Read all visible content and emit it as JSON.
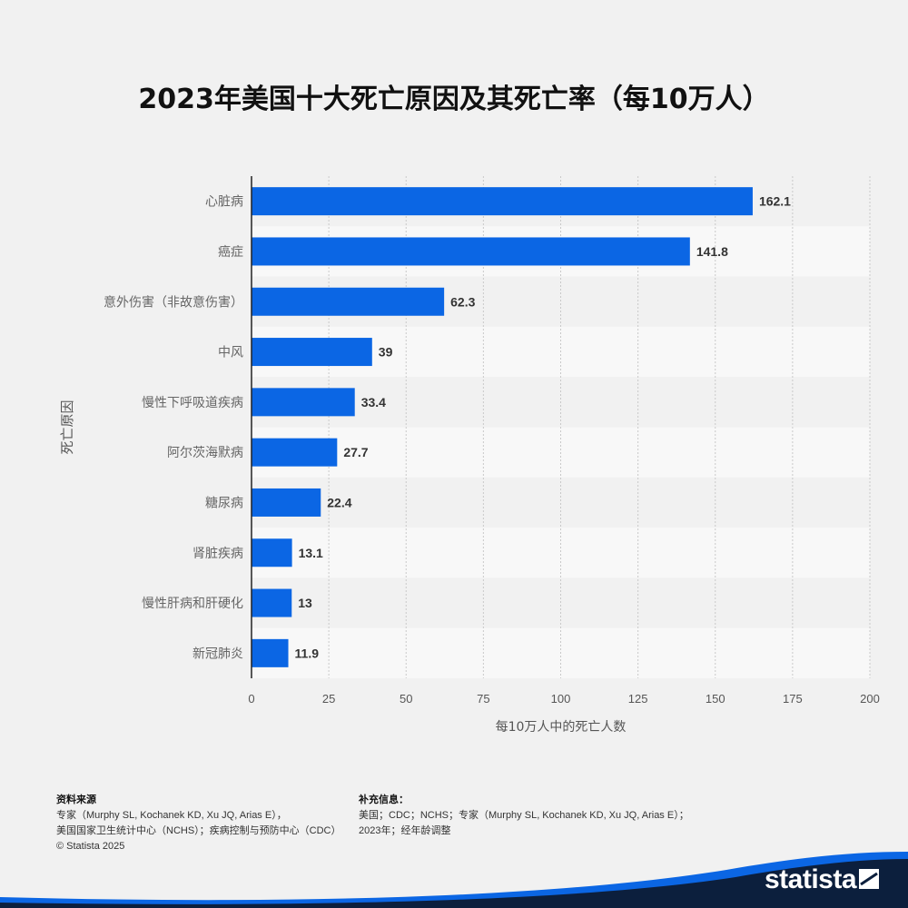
{
  "title": "2023年美国十大死亡原因及其死亡率（每10万人）",
  "chart_data": {
    "type": "bar",
    "orientation": "horizontal",
    "title": "2023年美国十大死亡原因及其死亡率（每10万人）",
    "xlabel": "每10万人中的死亡人数",
    "ylabel": "死亡原因",
    "categories": [
      "心脏病",
      "癌症",
      "意外伤害（非故意伤害）",
      "中风",
      "慢性下呼吸道疾病",
      "阿尔茨海默病",
      "糖尿病",
      "肾脏疾病",
      "慢性肝病和肝硬化",
      "新冠肺炎"
    ],
    "values": [
      162.1,
      141.8,
      62.3,
      39,
      33.4,
      27.7,
      22.4,
      13.1,
      13,
      11.9
    ],
    "value_labels": [
      "162.1",
      "141.8",
      "62.3",
      "39",
      "33.4",
      "27.7",
      "22.4",
      "13.1",
      "13",
      "11.9"
    ],
    "xlim": [
      0,
      200
    ],
    "xticks": [
      0,
      25,
      50,
      75,
      100,
      125,
      150,
      175,
      200
    ],
    "grid": true,
    "bar_color": "#0b66e4"
  },
  "footer": {
    "source_heading": "资料来源",
    "source_line1": "专家（Murphy SL, Kochanek KD, Xu JQ, Arias E），",
    "source_line2": "美国国家卫生统计中心（NCHS）；疾病控制与预防中心（CDC）",
    "copyright": "© Statista 2025",
    "info_heading": "补充信息：",
    "info_line1": "美国；CDC；NCHS；专家（Murphy SL, Kochanek KD, Xu JQ, Arias E）；",
    "info_line2": "2023年；经年龄调整"
  },
  "brand": {
    "logo_text": "statista",
    "wave_color": "#0b66e4",
    "dark_color": "#0c1f3d"
  }
}
